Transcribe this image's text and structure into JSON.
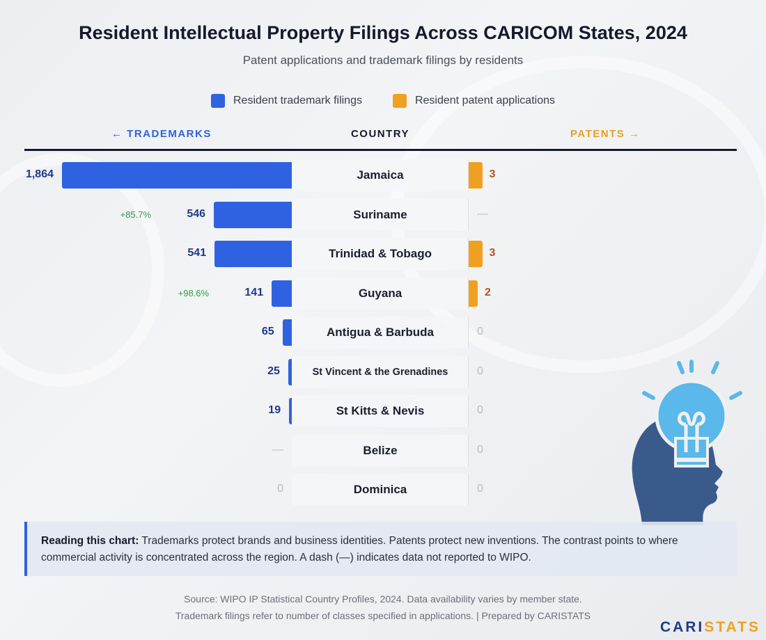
{
  "colors": {
    "trademark": "#2f62e0",
    "patent": "#f0a020",
    "change": "#2e9a43"
  },
  "legend": [
    {
      "label": "Resident trademark filings"
    },
    {
      "label": "Resident patent applications"
    }
  ],
  "headers": {
    "trademarks": "← TRADEMARKS",
    "country": "COUNTRY",
    "patents": "PATENTS →"
  },
  "chart_data": {
    "type": "bar",
    "title": "Resident Intellectual Property Filings Across CARICOM States, 2024",
    "subtitle": "Patent applications and trademark filings by residents",
    "categories": [
      "Jamaica",
      "Suriname",
      "Trinidad & Tobago",
      "Guyana",
      "Antigua & Barbuda",
      "St Vincent & the Grenadines",
      "St Kitts & Nevis",
      "Belize",
      "Dominica"
    ],
    "series": [
      {
        "name": "Resident trademark filings",
        "values": [
          1864,
          546,
          541,
          141,
          65,
          25,
          19,
          null,
          0
        ],
        "labels": [
          "1,864",
          "546",
          "541",
          "141",
          "65",
          "25",
          "19",
          "—",
          "0"
        ],
        "changes": [
          "",
          "+85.7%",
          "",
          "+98.6%",
          "",
          "",
          "",
          "",
          ""
        ]
      },
      {
        "name": "Resident patent applications",
        "values": [
          3,
          null,
          3,
          2,
          0,
          0,
          0,
          0,
          0
        ],
        "labels": [
          "3",
          "—",
          "3",
          "2",
          "0",
          "0",
          "0",
          "0",
          "0"
        ]
      }
    ]
  },
  "note": {
    "lead": "Reading this chart:",
    "text": " Trademarks protect brands and business identities. Patents protect new inventions. The contrast points to where commercial activity is concentrated across the region. A dash (—) indicates data not reported to WIPO."
  },
  "source": {
    "line1": "Source: WIPO IP Statistical Country Profiles, 2024. Data availability varies by member state.",
    "line2": "Trademark filings refer to number of classes specified in applications. | Prepared by CARISTATS"
  },
  "logo": {
    "part1": "CARI",
    "part2": "STATS"
  }
}
